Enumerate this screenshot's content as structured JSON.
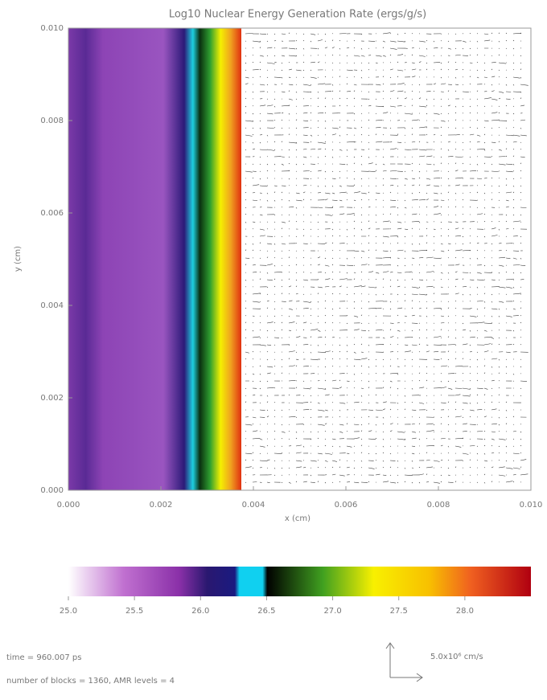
{
  "chart_data": {
    "type": "heatmap",
    "title": "Log10 Nuclear Energy Generation Rate (ergs/g/s)",
    "xlabel": "x (cm)",
    "ylabel": "y (cm)",
    "xlim": [
      0,
      0.01
    ],
    "ylim": [
      0,
      0.01
    ],
    "xticks": [
      {
        "value": 0,
        "label": "0.000"
      },
      {
        "value": 0.002,
        "label": "0.002"
      },
      {
        "value": 0.004,
        "label": "0.004"
      },
      {
        "value": 0.006,
        "label": "0.006"
      },
      {
        "value": 0.008,
        "label": "0.008"
      },
      {
        "value": 0.01,
        "label": "0.010"
      }
    ],
    "yticks": [
      {
        "value": 0,
        "label": "0.000"
      },
      {
        "value": 0.002,
        "label": "0.002"
      },
      {
        "value": 0.004,
        "label": "0.004"
      },
      {
        "value": 0.006,
        "label": "0.006"
      },
      {
        "value": 0.008,
        "label": "0.008"
      },
      {
        "value": 0.01,
        "label": "0.010"
      }
    ],
    "clim": [
      25,
      28.5
    ],
    "cticks": [
      {
        "value": 25,
        "label": "25.0"
      },
      {
        "value": 25.5,
        "label": "25.5"
      },
      {
        "value": 26,
        "label": "26.0"
      },
      {
        "value": 26.5,
        "label": "26.5"
      },
      {
        "value": 27,
        "label": "27.0"
      },
      {
        "value": 27.5,
        "label": "27.5"
      },
      {
        "value": 28,
        "label": "28.0"
      }
    ],
    "annotations": [
      "time = 960.007 ps",
      "number of blocks =    1360, AMR levels =    4"
    ],
    "vector_scale": "5.0x10⁶ cm/s"
  }
}
